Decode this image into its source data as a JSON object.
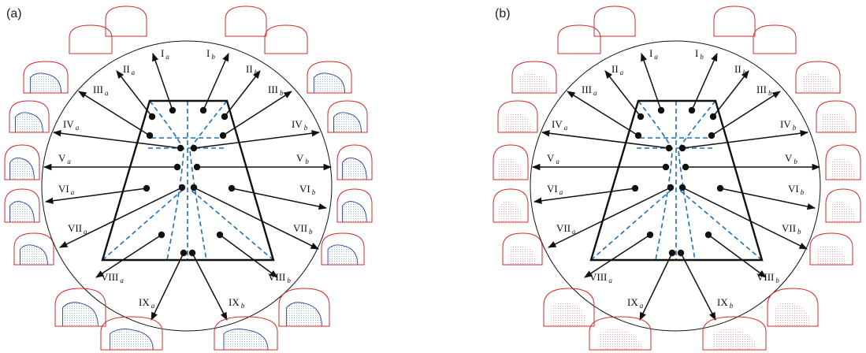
{
  "figure": {
    "colors": {
      "outline": "#111111",
      "dashed": "#1f6fb3",
      "contour_red": "#d42a2a",
      "contour_blue": "#2b3a9a",
      "stipple_blue": "#7aa6d6",
      "stipple_pink": "#e58aa8"
    },
    "label_roman": [
      "I",
      "II",
      "III",
      "IV",
      "V",
      "VI",
      "VII",
      "VIII",
      "IX"
    ],
    "panels": [
      {
        "label": "(a)",
        "sub_left": "a",
        "sub_right": "b",
        "style": "blue"
      },
      {
        "label": "(b)",
        "sub_left": "a",
        "sub_right": "b",
        "style": "pink"
      }
    ]
  }
}
